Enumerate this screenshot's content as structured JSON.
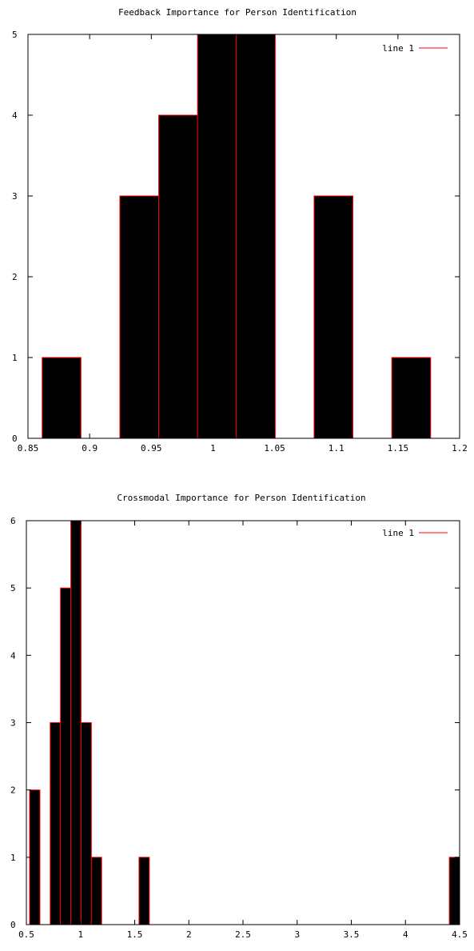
{
  "chart_data": [
    {
      "type": "bar",
      "title": "Feedback Importance for Person Identification",
      "xlabel": "",
      "ylabel": "",
      "xlim": [
        0.85,
        1.2
      ],
      "ylim": [
        0,
        5
      ],
      "xticks": [
        "0.85",
        "0.9",
        "0.95",
        "1",
        "1.05",
        "1.1",
        "1.15",
        "1.2"
      ],
      "yticks": [
        "0",
        "1",
        "2",
        "3",
        "4",
        "5"
      ],
      "legend": {
        "label": "line 1",
        "placement": "top-right"
      },
      "bar_fill": "#000000",
      "bar_edge": "#ff0000",
      "bins": [
        {
          "x0": 0.8615,
          "x1": 0.893,
          "value": 1
        },
        {
          "x0": 0.9245,
          "x1": 0.956,
          "value": 3
        },
        {
          "x0": 0.956,
          "x1": 0.9875,
          "value": 4
        },
        {
          "x0": 0.9875,
          "x1": 1.019,
          "value": 5
        },
        {
          "x0": 1.019,
          "x1": 1.0505,
          "value": 5
        },
        {
          "x0": 1.082,
          "x1": 1.1135,
          "value": 3
        },
        {
          "x0": 1.145,
          "x1": 1.1765,
          "value": 1
        }
      ],
      "grid": false
    },
    {
      "type": "bar",
      "title": "Crossmodal Importance for Person Identification",
      "xlabel": "",
      "ylabel": "",
      "xlim": [
        0.5,
        4.5
      ],
      "ylim": [
        0,
        6
      ],
      "xticks": [
        "0.5",
        "1",
        "1.5",
        "2",
        "2.5",
        "3",
        "3.5",
        "4",
        "4.5"
      ],
      "yticks": [
        "0",
        "1",
        "2",
        "3",
        "4",
        "5",
        "6"
      ],
      "legend": {
        "label": "line 1",
        "placement": "top-right"
      },
      "bar_fill": "#000000",
      "bar_edge": "#ff0000",
      "bins": [
        {
          "x0": 0.53,
          "x1": 0.625,
          "value": 2
        },
        {
          "x0": 0.72,
          "x1": 0.815,
          "value": 3
        },
        {
          "x0": 0.815,
          "x1": 0.91,
          "value": 5
        },
        {
          "x0": 0.91,
          "x1": 1.005,
          "value": 6
        },
        {
          "x0": 1.005,
          "x1": 1.1,
          "value": 3
        },
        {
          "x0": 1.1,
          "x1": 1.195,
          "value": 1
        },
        {
          "x0": 1.54,
          "x1": 1.635,
          "value": 1
        },
        {
          "x0": 4.405,
          "x1": 4.5,
          "value": 1
        }
      ],
      "grid": false
    }
  ]
}
